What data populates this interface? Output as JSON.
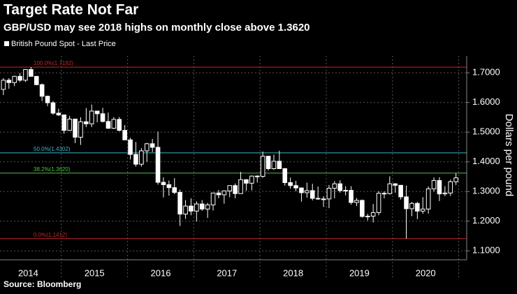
{
  "chart_data": {
    "type": "candlestick",
    "title": "Target Rate Not Far",
    "subtitle": "GBP/USD may see 2018 highs on monthly close above 1.3620",
    "legend": "British Pound Spot - Last Price",
    "y_axis_label": "Dollars per pound",
    "source": "Source: Bloomberg",
    "xticks": [
      "2014",
      "2015",
      "2016",
      "2017",
      "2018",
      "2019",
      "2020"
    ],
    "ylim": [
      1.07,
      1.757
    ],
    "yticks": [
      {
        "value": 1.1,
        "label": "1.1000"
      },
      {
        "value": 1.2,
        "label": "1.2000"
      },
      {
        "value": 1.3,
        "label": "1.3000"
      },
      {
        "value": 1.4,
        "label": "1.4000"
      },
      {
        "value": 1.5,
        "label": "1.5000"
      },
      {
        "value": 1.6,
        "label": "1.6000"
      },
      {
        "value": 1.7,
        "label": "1.7000"
      }
    ],
    "grid": true,
    "up_color": "#000000",
    "down_color": "#ffffff",
    "open": [
      1.644,
      1.675,
      1.667,
      1.688,
      1.675,
      1.711,
      1.688,
      1.66,
      1.621,
      1.599,
      1.564,
      1.558,
      1.506,
      1.544,
      1.483,
      1.535,
      1.528,
      1.571,
      1.562,
      1.536,
      1.513,
      1.543,
      1.506,
      1.474,
      1.425,
      1.392,
      1.437,
      1.461,
      1.449,
      1.331,
      1.323,
      1.313,
      1.297,
      1.224,
      1.251,
      1.234,
      1.258,
      1.241,
      1.255,
      1.295,
      1.289,
      1.302,
      1.32,
      1.293,
      1.34,
      1.328,
      1.352,
      1.351,
      1.419,
      1.377,
      1.402,
      1.377,
      1.33,
      1.32,
      1.312,
      1.296,
      1.303,
      1.277,
      1.275,
      1.275,
      1.311,
      1.326,
      1.303,
      1.304,
      1.263,
      1.27,
      1.216,
      1.217,
      1.229,
      1.294,
      1.293,
      1.326,
      1.321,
      1.282,
      1.242,
      1.26,
      1.234,
      1.241,
      1.309,
      1.337,
      1.292,
      1.295,
      1.333
    ],
    "high": [
      1.682,
      1.682,
      1.69,
      1.699,
      1.711,
      1.7192,
      1.689,
      1.664,
      1.623,
      1.605,
      1.579,
      1.559,
      1.555,
      1.545,
      1.55,
      1.5815,
      1.593,
      1.569,
      1.582,
      1.566,
      1.551,
      1.551,
      1.524,
      1.481,
      1.467,
      1.446,
      1.464,
      1.477,
      1.5018,
      1.348,
      1.337,
      1.345,
      1.306,
      1.271,
      1.277,
      1.267,
      1.271,
      1.262,
      1.296,
      1.305,
      1.304,
      1.32,
      1.327,
      1.366,
      1.334,
      1.354,
      1.355,
      1.435,
      1.415,
      1.424,
      1.4377,
      1.379,
      1.347,
      1.336,
      1.314,
      1.33,
      1.326,
      1.317,
      1.284,
      1.322,
      1.335,
      1.338,
      1.318,
      1.318,
      1.278,
      1.273,
      1.225,
      1.258,
      1.301,
      1.3,
      1.351,
      1.328,
      1.32,
      1.32,
      1.265,
      1.265,
      1.281,
      1.317,
      1.348,
      1.348,
      1.318,
      1.34,
      1.362
    ],
    "low": [
      1.625,
      1.646,
      1.655,
      1.669,
      1.669,
      1.688,
      1.658,
      1.605,
      1.5875,
      1.559,
      1.554,
      1.495,
      1.504,
      1.463,
      1.457,
      1.517,
      1.517,
      1.533,
      1.533,
      1.511,
      1.51,
      1.503,
      1.474,
      1.408,
      1.384,
      1.384,
      1.4,
      1.433,
      1.323,
      1.28,
      1.286,
      1.291,
      1.184,
      1.208,
      1.22,
      1.199,
      1.235,
      1.211,
      1.236,
      1.277,
      1.259,
      1.281,
      1.277,
      1.295,
      1.302,
      1.304,
      1.33,
      1.346,
      1.371,
      1.373,
      1.376,
      1.32,
      1.31,
      1.301,
      1.266,
      1.279,
      1.27,
      1.272,
      1.248,
      1.244,
      1.277,
      1.296,
      1.287,
      1.256,
      1.251,
      1.212,
      1.202,
      1.196,
      1.22,
      1.277,
      1.29,
      1.296,
      1.273,
      1.141,
      1.217,
      1.207,
      1.225,
      1.225,
      1.3,
      1.268,
      1.284,
      1.285,
      1.322
    ],
    "close": [
      1.675,
      1.667,
      1.688,
      1.675,
      1.711,
      1.688,
      1.66,
      1.621,
      1.599,
      1.564,
      1.558,
      1.506,
      1.544,
      1.483,
      1.535,
      1.528,
      1.571,
      1.562,
      1.536,
      1.513,
      1.543,
      1.506,
      1.474,
      1.425,
      1.392,
      1.437,
      1.461,
      1.449,
      1.331,
      1.323,
      1.313,
      1.297,
      1.224,
      1.251,
      1.234,
      1.258,
      1.241,
      1.255,
      1.295,
      1.289,
      1.302,
      1.32,
      1.293,
      1.34,
      1.328,
      1.352,
      1.351,
      1.419,
      1.377,
      1.402,
      1.377,
      1.33,
      1.32,
      1.312,
      1.296,
      1.303,
      1.277,
      1.275,
      1.275,
      1.311,
      1.326,
      1.303,
      1.304,
      1.263,
      1.27,
      1.216,
      1.217,
      1.229,
      1.294,
      1.293,
      1.326,
      1.321,
      1.282,
      1.242,
      1.26,
      1.234,
      1.241,
      1.309,
      1.337,
      1.292,
      1.295,
      1.333,
      1.346
    ],
    "levels": [
      {
        "label": "100.0%(1.7192)",
        "value": 1.7192,
        "color": "#c0282d"
      },
      {
        "label": "50.0%(1.4302)",
        "value": 1.4302,
        "color": "#3fb6c9"
      },
      {
        "label": "38.2%(1.3620)",
        "value": 1.362,
        "color": "#4fc447"
      },
      {
        "label": "0.0%(1.1412)",
        "value": 1.1412,
        "color": "#c0282d"
      }
    ]
  }
}
